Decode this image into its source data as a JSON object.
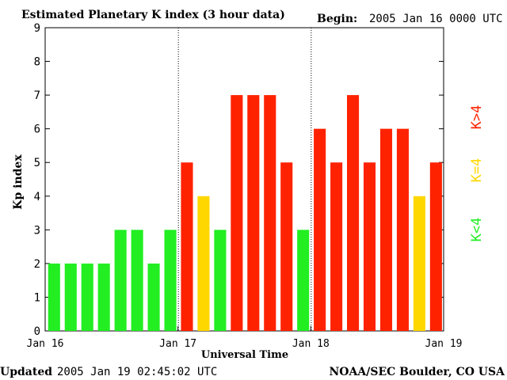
{
  "header": {
    "title": "Estimated Planetary K index (3 hour data)",
    "begin_label": "Begin:",
    "begin_value": "2005 Jan 16 0000 UTC"
  },
  "footer": {
    "updated_label": "Updated",
    "updated_value": "2005 Jan 19 02:45:02 UTC",
    "source": "NOAA/SEC Boulder, CO USA"
  },
  "legend": {
    "items": [
      {
        "label": "K<4",
        "color": "#22ee22"
      },
      {
        "label": "K=4",
        "color": "#ffd700"
      },
      {
        "label": "K>4",
        "color": "#ff2200"
      }
    ]
  },
  "chart_data": {
    "type": "bar",
    "xlabel": "Universal Time",
    "ylabel": "Kp index",
    "ylim": [
      0,
      9
    ],
    "yticks": [
      0,
      1,
      2,
      3,
      4,
      5,
      6,
      7,
      8,
      9
    ],
    "xtick_labels": [
      "Jan 16",
      "Jan 17",
      "Jan 18",
      "Jan 19"
    ],
    "day_separators": [
      "Jan 17",
      "Jan 18"
    ],
    "values": [
      2,
      2,
      2,
      2,
      3,
      3,
      2,
      3,
      5,
      4,
      3,
      7,
      7,
      7,
      5,
      3,
      6,
      5,
      7,
      5,
      6,
      6,
      4,
      5
    ],
    "colors": {
      "low": "#22ee22",
      "equal": "#ffd700",
      "high": "#ff2200"
    }
  }
}
